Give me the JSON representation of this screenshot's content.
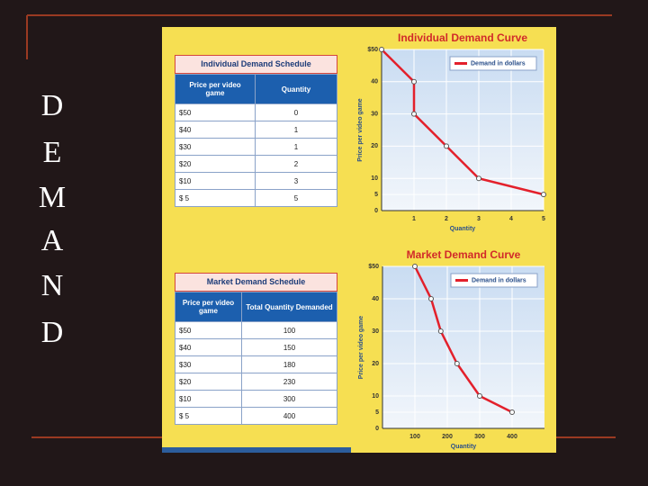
{
  "slide_title": [
    "D",
    "E",
    "M",
    "A",
    "N",
    "D"
  ],
  "tables": [
    {
      "title": "Individual Demand Schedule",
      "header": [
        "Price per video game",
        "Quantity"
      ],
      "rows": [
        [
          "$50",
          "0"
        ],
        [
          "$40",
          "1"
        ],
        [
          "$30",
          "1"
        ],
        [
          "$20",
          "2"
        ],
        [
          "$10",
          "3"
        ],
        [
          "$ 5",
          "5"
        ]
      ]
    },
    {
      "title": "Market Demand Schedule",
      "header": [
        "Price per video game",
        "Total Quantity Demanded"
      ],
      "rows": [
        [
          "$50",
          "100"
        ],
        [
          "$40",
          "150"
        ],
        [
          "$30",
          "180"
        ],
        [
          "$20",
          "230"
        ],
        [
          "$10",
          "300"
        ],
        [
          "$ 5",
          "400"
        ]
      ]
    }
  ],
  "chart_data": [
    {
      "type": "line",
      "title": "Individual Demand Curve",
      "x_label": "Quantity",
      "y_label": "Price per video game",
      "x": [
        0,
        1,
        1,
        2,
        3,
        5
      ],
      "series": [
        {
          "name": "Demand in dollars",
          "color": "#e3202b",
          "values": [
            50,
            40,
            30,
            20,
            10,
            5
          ]
        }
      ],
      "xlim": [
        0,
        5
      ],
      "ylim": [
        0,
        50
      ],
      "xticks": [
        1,
        2,
        3,
        4,
        5
      ],
      "yticks": [
        0,
        5,
        10,
        20,
        30,
        40,
        {
          "value": 50,
          "label": "$50"
        }
      ],
      "grid": true,
      "legend": "upper right"
    },
    {
      "type": "line",
      "title": "Market Demand Curve",
      "x_label": "Quantity",
      "y_label": "Price per video game",
      "x": [
        100,
        150,
        180,
        230,
        300,
        400
      ],
      "series": [
        {
          "name": "Demand in dollars",
          "color": "#e3202b",
          "values": [
            50,
            40,
            30,
            20,
            10,
            5
          ]
        }
      ],
      "xlim": [
        0,
        500
      ],
      "ylim": [
        0,
        50
      ],
      "xticks": [
        100,
        200,
        300,
        400
      ],
      "yticks": [
        0,
        5,
        10,
        20,
        30,
        40,
        {
          "value": 50,
          "label": "$50"
        }
      ],
      "grid": true,
      "legend": "upper right"
    }
  ]
}
